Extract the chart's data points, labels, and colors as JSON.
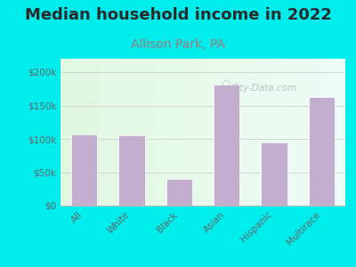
{
  "title": "Median household income in 2022",
  "subtitle": "Allison Park, PA",
  "categories": [
    "All",
    "White",
    "Black",
    "Asian",
    "Hispanic",
    "Multirace"
  ],
  "values": [
    107000,
    105000,
    40000,
    181000,
    95000,
    163000
  ],
  "bar_color": "#c4aed0",
  "bar_edge_color": "#ffffff",
  "background_outer": "#00edee",
  "title_color": "#2a2a2a",
  "subtitle_color": "#a07878",
  "tick_label_color": "#666666",
  "ylim": [
    0,
    220000
  ],
  "yticks": [
    0,
    50000,
    100000,
    150000,
    200000
  ],
  "ytick_labels": [
    "$0",
    "$50k",
    "$100k",
    "$150k",
    "$200k"
  ],
  "watermark": "City-Data.com",
  "title_fontsize": 13,
  "subtitle_fontsize": 10
}
